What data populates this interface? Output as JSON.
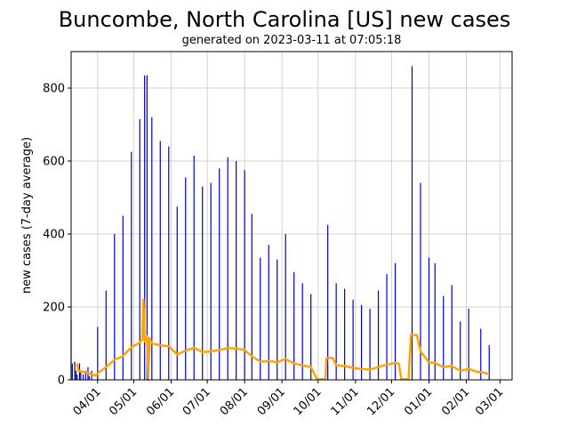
{
  "chart_data": {
    "type": "bar",
    "title": "Buncombe, North Carolina [US] new cases",
    "subtitle": "generated on 2023-03-11 at 07:05:18",
    "ylabel": "new cases (7-day average)",
    "xlabel": "",
    "xlim": [
      "2022-03-10",
      "2023-03-11"
    ],
    "ylim": [
      0,
      900
    ],
    "yticks": [
      0,
      200,
      400,
      600,
      800
    ],
    "xticks": [
      {
        "date": "2022-04-01",
        "label": "04/01"
      },
      {
        "date": "2022-05-01",
        "label": "05/01"
      },
      {
        "date": "2022-06-01",
        "label": "06/01"
      },
      {
        "date": "2022-07-01",
        "label": "07/01"
      },
      {
        "date": "2022-08-01",
        "label": "08/01"
      },
      {
        "date": "2022-09-01",
        "label": "09/01"
      },
      {
        "date": "2022-10-01",
        "label": "10/01"
      },
      {
        "date": "2022-11-01",
        "label": "11/01"
      },
      {
        "date": "2022-12-01",
        "label": "12/01"
      },
      {
        "date": "2023-01-01",
        "label": "01/01"
      },
      {
        "date": "2023-02-01",
        "label": "02/01"
      },
      {
        "date": "2023-03-01",
        "label": "03/01"
      }
    ],
    "grid": true,
    "colors": {
      "bars": "#0000cc",
      "line": "#ffa500"
    },
    "series": [
      {
        "type": "bar",
        "points": [
          [
            "2022-03-10",
            165
          ],
          [
            "2022-03-11",
            45
          ],
          [
            "2022-03-13",
            50
          ],
          [
            "2022-03-14",
            25
          ],
          [
            "2022-03-15",
            15
          ],
          [
            "2022-03-17",
            45
          ],
          [
            "2022-03-18",
            20
          ],
          [
            "2022-03-20",
            15
          ],
          [
            "2022-03-22",
            25
          ],
          [
            "2022-03-24",
            35
          ],
          [
            "2022-03-25",
            10
          ],
          [
            "2022-03-27",
            25
          ],
          [
            "2022-04-01",
            145
          ],
          [
            "2022-04-08",
            245
          ],
          [
            "2022-04-15",
            400
          ],
          [
            "2022-04-22",
            450
          ],
          [
            "2022-04-29",
            625
          ],
          [
            "2022-05-06",
            715
          ],
          [
            "2022-05-10",
            835
          ],
          [
            "2022-05-12",
            835
          ],
          [
            "2022-05-16",
            720
          ],
          [
            "2022-05-23",
            655
          ],
          [
            "2022-05-30",
            640
          ],
          [
            "2022-06-06",
            475
          ],
          [
            "2022-06-13",
            555
          ],
          [
            "2022-06-20",
            615
          ],
          [
            "2022-06-27",
            530
          ],
          [
            "2022-07-04",
            540
          ],
          [
            "2022-07-11",
            580
          ],
          [
            "2022-07-18",
            610
          ],
          [
            "2022-07-25",
            600
          ],
          [
            "2022-08-01",
            575
          ],
          [
            "2022-08-07",
            455
          ],
          [
            "2022-08-14",
            335
          ],
          [
            "2022-08-21",
            370
          ],
          [
            "2022-08-28",
            330
          ],
          [
            "2022-09-04",
            400
          ],
          [
            "2022-09-11",
            295
          ],
          [
            "2022-09-18",
            265
          ],
          [
            "2022-09-25",
            235
          ],
          [
            "2022-10-09",
            425
          ],
          [
            "2022-10-16",
            265
          ],
          [
            "2022-10-23",
            250
          ],
          [
            "2022-10-30",
            220
          ],
          [
            "2022-11-06",
            205
          ],
          [
            "2022-11-13",
            195
          ],
          [
            "2022-11-20",
            245
          ],
          [
            "2022-11-27",
            290
          ],
          [
            "2022-12-04",
            320
          ],
          [
            "2022-12-18",
            860
          ],
          [
            "2022-12-25",
            540
          ],
          [
            "2023-01-01",
            335
          ],
          [
            "2023-01-06",
            320
          ],
          [
            "2023-01-13",
            230
          ],
          [
            "2023-01-20",
            260
          ],
          [
            "2023-01-27",
            160
          ],
          [
            "2023-02-03",
            195
          ],
          [
            "2023-02-13",
            140
          ],
          [
            "2023-02-20",
            95
          ]
        ]
      },
      {
        "type": "line",
        "points": [
          [
            "2022-03-15",
            45
          ],
          [
            "2022-03-16",
            25
          ],
          [
            "2022-03-20",
            22
          ],
          [
            "2022-03-25",
            18
          ],
          [
            "2022-03-30",
            12
          ],
          [
            "2022-04-02",
            20
          ],
          [
            "2022-04-08",
            35
          ],
          [
            "2022-04-15",
            55
          ],
          [
            "2022-04-22",
            65
          ],
          [
            "2022-04-29",
            90
          ],
          [
            "2022-05-05",
            100
          ],
          [
            "2022-05-08",
            110
          ],
          [
            "2022-05-09",
            220
          ],
          [
            "2022-05-10",
            105
          ],
          [
            "2022-05-12",
            120
          ],
          [
            "2022-05-13",
            0
          ],
          [
            "2022-05-14",
            115
          ],
          [
            "2022-05-16",
            100
          ],
          [
            "2022-05-23",
            95
          ],
          [
            "2022-05-30",
            92
          ],
          [
            "2022-06-06",
            70
          ],
          [
            "2022-06-13",
            80
          ],
          [
            "2022-06-20",
            88
          ],
          [
            "2022-06-27",
            76
          ],
          [
            "2022-07-04",
            78
          ],
          [
            "2022-07-11",
            82
          ],
          [
            "2022-07-18",
            87
          ],
          [
            "2022-07-25",
            86
          ],
          [
            "2022-08-01",
            82
          ],
          [
            "2022-08-07",
            65
          ],
          [
            "2022-08-14",
            50
          ],
          [
            "2022-08-21",
            52
          ],
          [
            "2022-08-28",
            48
          ],
          [
            "2022-09-04",
            57
          ],
          [
            "2022-09-11",
            45
          ],
          [
            "2022-09-18",
            40
          ],
          [
            "2022-09-25",
            35
          ],
          [
            "2022-09-30",
            2
          ],
          [
            "2022-10-07",
            2
          ],
          [
            "2022-10-08",
            60
          ],
          [
            "2022-10-13",
            60
          ],
          [
            "2022-10-16",
            40
          ],
          [
            "2022-10-23",
            38
          ],
          [
            "2022-10-30",
            33
          ],
          [
            "2022-11-06",
            30
          ],
          [
            "2022-11-13",
            28
          ],
          [
            "2022-11-20",
            35
          ],
          [
            "2022-11-27",
            42
          ],
          [
            "2022-12-04",
            46
          ],
          [
            "2022-12-07",
            45
          ],
          [
            "2022-12-09",
            2
          ],
          [
            "2022-12-15",
            2
          ],
          [
            "2022-12-17",
            123
          ],
          [
            "2022-12-22",
            123
          ],
          [
            "2022-12-25",
            78
          ],
          [
            "2023-01-01",
            48
          ],
          [
            "2023-01-06",
            46
          ],
          [
            "2023-01-13",
            35
          ],
          [
            "2023-01-20",
            38
          ],
          [
            "2023-01-27",
            25
          ],
          [
            "2023-02-03",
            30
          ],
          [
            "2023-02-10",
            22
          ],
          [
            "2023-02-16",
            20
          ],
          [
            "2023-02-20",
            15
          ]
        ]
      }
    ]
  }
}
